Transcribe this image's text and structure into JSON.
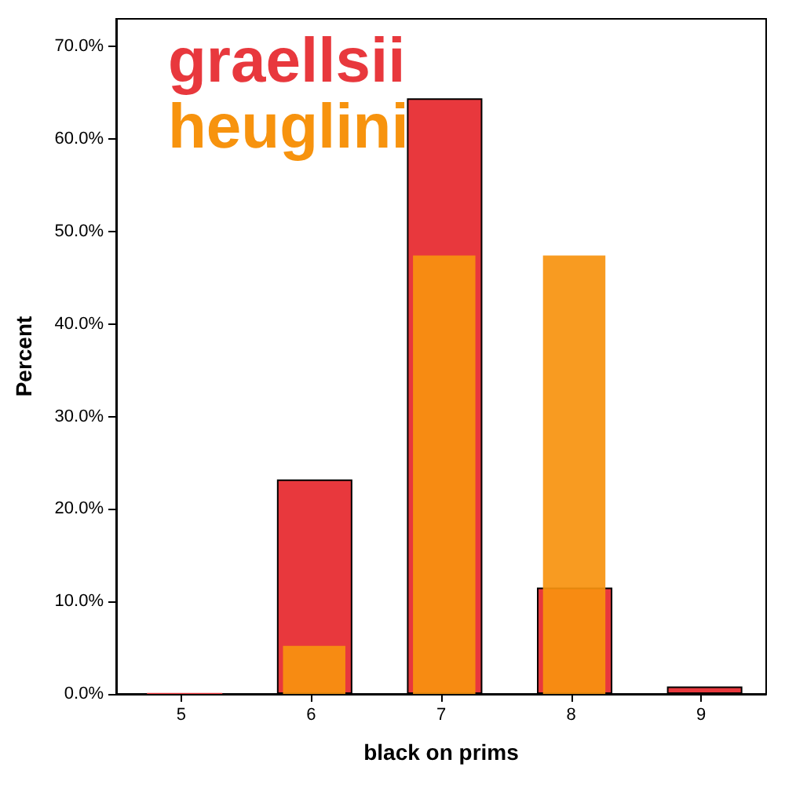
{
  "chart_data": {
    "type": "bar",
    "xlabel": "black on prims",
    "ylabel": "Percent",
    "categories": [
      "5",
      "6",
      "7",
      "8",
      "9"
    ],
    "series": [
      {
        "name": "graellsii",
        "color": "#e8383d",
        "values": [
          0.1,
          23.2,
          64.4,
          11.5,
          0.8
        ]
      },
      {
        "name": "heuglini",
        "color": "#f7930e",
        "values": [
          0,
          5.2,
          47.4,
          47.4,
          0
        ]
      }
    ],
    "ylim": [
      0,
      73
    ],
    "yticks": [
      {
        "value": 0,
        "label": "0.0%"
      },
      {
        "value": 10,
        "label": "10.0%"
      },
      {
        "value": 20,
        "label": "20.0%"
      },
      {
        "value": 30,
        "label": "30.0%"
      },
      {
        "value": 40,
        "label": "40.0%"
      },
      {
        "value": 50,
        "label": "50.0%"
      },
      {
        "value": 60,
        "label": "60.0%"
      },
      {
        "value": 70,
        "label": "70.0%"
      }
    ],
    "grid": false,
    "legend": "top left"
  }
}
